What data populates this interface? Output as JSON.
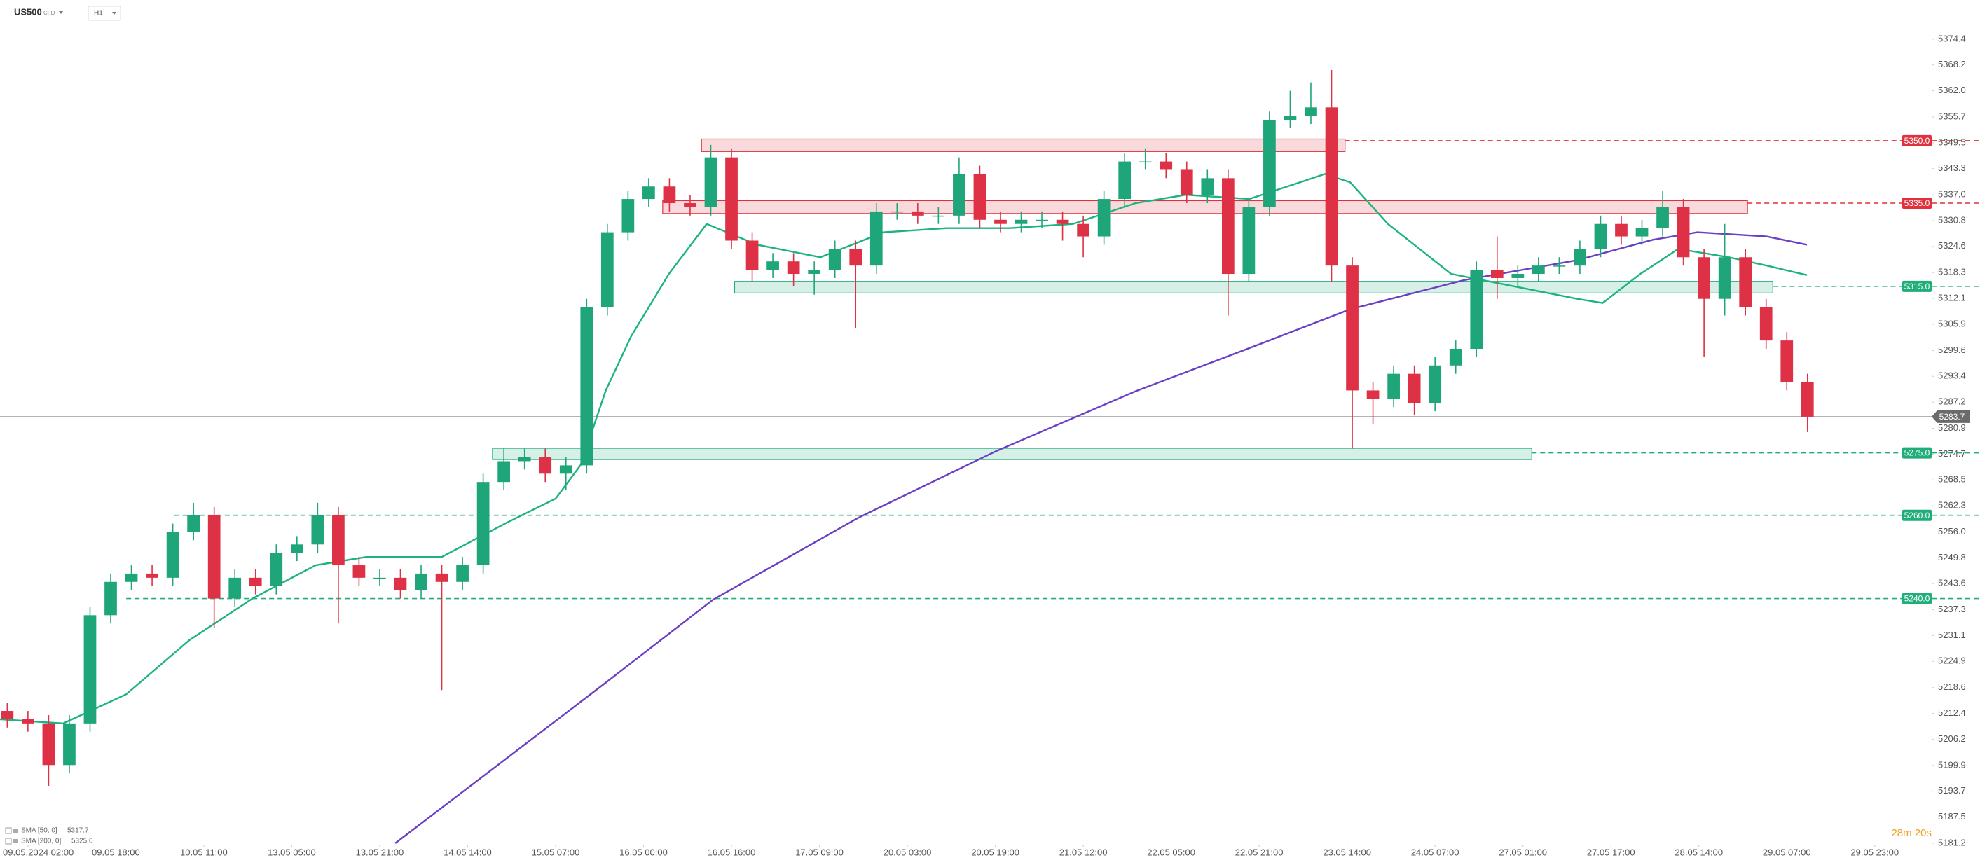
{
  "header": {
    "symbol": "US500",
    "instrument_type": "CFD",
    "timeframe": "H1"
  },
  "chart_data": {
    "type": "candlestick",
    "up_color": "#1fa57a",
    "down_color": "#de3146",
    "x": [
      -4,
      0,
      4,
      8,
      12,
      16,
      20,
      24,
      28,
      32,
      36,
      40,
      44,
      48,
      52,
      56,
      60,
      64,
      68,
      72,
      76,
      80,
      84,
      88,
      92,
      96,
      100,
      104,
      108,
      112,
      116,
      120,
      124,
      128,
      132,
      136,
      140,
      144,
      148,
      152,
      156,
      160,
      164,
      168,
      172,
      176,
      180,
      184,
      188,
      192,
      196,
      200,
      204,
      208,
      212,
      216,
      220,
      224,
      228,
      232,
      236,
      240,
      244,
      248,
      252,
      256,
      260,
      264,
      268,
      272,
      276,
      280,
      284,
      288,
      292,
      296,
      300,
      304,
      308,
      312,
      316,
      320,
      324,
      328,
      332,
      336,
      340,
      344
    ],
    "open": [
      5213,
      5211,
      5210,
      5200,
      5210,
      5236,
      5244,
      5246,
      5245,
      5256,
      5260,
      5240,
      5245,
      5243,
      5251,
      5253,
      5260,
      5248,
      5245,
      5245,
      5242,
      5246,
      5244,
      5248,
      5268,
      5273,
      5274,
      5270,
      5272,
      5310,
      5328,
      5336,
      5339,
      5335,
      5334,
      5346,
      5326,
      5319,
      5321,
      5318,
      5319,
      5324,
      5320,
      5333,
      5333,
      5332,
      5332,
      5342,
      5331,
      5330,
      5331,
      5331,
      5330,
      5327,
      5336,
      5345,
      5345,
      5343,
      5337,
      5341,
      5318,
      5334,
      5355,
      5356,
      5358,
      5320,
      5290,
      5288,
      5294,
      5287,
      5296,
      5300,
      5319,
      5317,
      5318,
      5320,
      5320,
      5324,
      5330,
      5327,
      5329,
      5334,
      5322,
      5312,
      5322,
      5310,
      5302,
      5292
    ],
    "high": [
      5215,
      5213,
      5212,
      5212,
      5238,
      5246,
      5248,
      5248,
      5258,
      5263,
      5262,
      5247,
      5247,
      5253,
      5255,
      5263,
      5262,
      5250,
      5247,
      5247,
      5248,
      5248,
      5250,
      5270,
      5276,
      5276,
      5276,
      5274,
      5312,
      5330,
      5338,
      5341,
      5341,
      5337,
      5349,
      5348,
      5328,
      5323,
      5323,
      5321,
      5326,
      5326,
      5335,
      5335,
      5335,
      5334,
      5346,
      5344,
      5333,
      5333,
      5333,
      5333,
      5332,
      5338,
      5347,
      5348,
      5347,
      5345,
      5343,
      5343,
      5336,
      5357,
      5362,
      5364,
      5367,
      5322,
      5292,
      5296,
      5296,
      5298,
      5302,
      5321,
      5327,
      5320,
      5322,
      5322,
      5326,
      5332,
      5332,
      5331,
      5338,
      5336,
      5324,
      5330,
      5324,
      5312,
      5304,
      5294
    ],
    "low": [
      5209,
      5208,
      5195,
      5198,
      5208,
      5234,
      5242,
      5243,
      5243,
      5254,
      5233,
      5238,
      5241,
      5241,
      5249,
      5251,
      5234,
      5243,
      5243,
      5240,
      5240,
      5218,
      5242,
      5246,
      5266,
      5271,
      5268,
      5266,
      5270,
      5308,
      5326,
      5334,
      5333,
      5332,
      5332,
      5324,
      5316,
      5317,
      5315,
      5313,
      5317,
      5305,
      5318,
      5331,
      5330,
      5330,
      5330,
      5329,
      5328,
      5328,
      5329,
      5326,
      5322,
      5325,
      5334,
      5343,
      5341,
      5335,
      5335,
      5308,
      5316,
      5332,
      5353,
      5354,
      5316,
      5276,
      5282,
      5286,
      5284,
      5285,
      5294,
      5298,
      5312,
      5315,
      5316,
      5318,
      5318,
      5322,
      5325,
      5325,
      5327,
      5320,
      5298,
      5308,
      5308,
      5300,
      5290,
      5280
    ],
    "close": [
      5211,
      5210,
      5200,
      5210,
      5236,
      5244,
      5246,
      5245,
      5256,
      5260,
      5240,
      5245,
      5243,
      5251,
      5253,
      5260,
      5248,
      5245,
      5245,
      5242,
      5246,
      5244,
      5248,
      5268,
      5273,
      5274,
      5270,
      5272,
      5310,
      5328,
      5336,
      5339,
      5335,
      5334,
      5346,
      5326,
      5319,
      5321,
      5318,
      5319,
      5324,
      5320,
      5333,
      5333,
      5332,
      5332,
      5342,
      5331,
      5330,
      5331,
      5331,
      5330,
      5327,
      5336,
      5345,
      5345,
      5343,
      5337,
      5341,
      5318,
      5334,
      5355,
      5356,
      5358,
      5320,
      5290,
      5288,
      5294,
      5287,
      5296,
      5300,
      5319,
      5317,
      5318,
      5320,
      5320,
      5324,
      5330,
      5327,
      5329,
      5334,
      5322,
      5312,
      5322,
      5310,
      5302,
      5292,
      5283.7
    ],
    "xlim": [
      -5.4,
      368
    ],
    "xticks": [
      {
        "value": 0,
        "label": "09.05.2024 02:00"
      },
      {
        "value": 17,
        "label": "09.05 18:00"
      },
      {
        "value": 34,
        "label": "10.05 11:00"
      },
      {
        "value": 51,
        "label": "13.05 05:00"
      },
      {
        "value": 68,
        "label": "13.05 21:00"
      },
      {
        "value": 85,
        "label": "14.05 14:00"
      },
      {
        "value": 102,
        "label": "15.05 07:00"
      },
      {
        "value": 119,
        "label": "16.05 00:00"
      },
      {
        "value": 136,
        "label": "16.05 16:00"
      },
      {
        "value": 153,
        "label": "17.05 09:00"
      },
      {
        "value": 170,
        "label": "20.05 03:00"
      },
      {
        "value": 187,
        "label": "20.05 19:00"
      },
      {
        "value": 204,
        "label": "21.05 12:00"
      },
      {
        "value": 221,
        "label": "22.05 05:00"
      },
      {
        "value": 238,
        "label": "22.05 21:00"
      },
      {
        "value": 255,
        "label": "23.05 14:00"
      },
      {
        "value": 272,
        "label": "24.05 07:00"
      },
      {
        "value": 289,
        "label": "27.05 01:00"
      },
      {
        "value": 306,
        "label": "27.05 17:00"
      },
      {
        "value": 323,
        "label": "28.05 14:00"
      },
      {
        "value": 340,
        "label": "29.05 07:00"
      },
      {
        "value": 357,
        "label": "29.05 23:00"
      }
    ],
    "ylim": [
      5181.2,
      5383.8
    ],
    "yticks": [
      5374.4,
      5368.2,
      {
        "value": 5362,
        "label": "5362.0"
      },
      5355.7,
      5349.5,
      5343.3,
      {
        "value": 5337,
        "label": "5337.0"
      },
      5330.8,
      5324.6,
      5318.3,
      5312.1,
      5305.9,
      5299.6,
      5293.4,
      5287.2,
      5280.9,
      5274.7,
      5268.5,
      5262.3,
      {
        "value": 5256,
        "label": "5256.0"
      },
      5249.8,
      5243.6,
      5237.3,
      5231.1,
      5224.9,
      5218.6,
      5212.4,
      5206.2,
      5199.9,
      5193.7,
      5187.5,
      5181.2
    ],
    "indicators": [
      {
        "name": "SMA [50, 0]",
        "value": 5317.7,
        "color": "#1db37f",
        "x": [
          -5.4,
          6.8,
          19,
          31.2,
          43.4,
          55.6,
          65.4,
          80,
          92.2,
          102,
          106.8,
          111.7,
          116.6,
          123.9,
          131.2,
          141,
          153.2,
          165.4,
          177.6,
          189.8,
          202,
          214.1,
          223.9,
          236.1,
          245.9,
          250.7,
          255.6,
          262.9,
          275.1,
          287.3,
          299.5,
          304.4,
          311.7,
          319,
          328.8,
          336.1,
          343.9
        ],
        "values": [
          5211,
          5210,
          5217,
          5230,
          5240,
          5248,
          5250,
          5250,
          5258,
          5264,
          5272,
          5290,
          5303,
          5318,
          5330,
          5325,
          5322,
          5328,
          5329,
          5329,
          5330,
          5335,
          5337,
          5336,
          5340,
          5342,
          5340,
          5330,
          5318,
          5315,
          5312,
          5311,
          5318,
          5324,
          5322,
          5320,
          5317.7
        ]
      },
      {
        "name": "SMA [200, 0]",
        "value": 5325,
        "value_label": "5325.0",
        "color": "#6a3fc4",
        "x": [
          71,
          92.2,
          111.7,
          132.4,
          160.5,
          187.3,
          214.1,
          238.5,
          255.6,
          277.6,
          299.5,
          314.1,
          322.7,
          336.1,
          343.9
        ],
        "values": [
          5181.2,
          5201.3,
          5219.8,
          5239.7,
          5259.4,
          5275.5,
          5289.8,
          5301.3,
          5309.5,
          5316.5,
          5321.3,
          5326.2,
          5328,
          5327,
          5325
        ]
      }
    ],
    "zones": [
      {
        "x": [
          130.2,
          254.6
        ],
        "y": [
          5347.4,
          5350.4
        ],
        "color": "#e0313c"
      },
      {
        "x": [
          122.7,
          332.4
        ],
        "y": [
          5332.5,
          5335.6
        ],
        "color": "#e0313c"
      },
      {
        "x": [
          136.6,
          337.3
        ],
        "y": [
          5313.4,
          5316.2
        ],
        "color": "#1fae7a"
      },
      {
        "x": [
          89.8,
          290.7
        ],
        "y": [
          5273.4,
          5276.1
        ],
        "color": "#1fae7a"
      }
    ],
    "levels": [
      {
        "value": 5350,
        "label": "5350.0",
        "color": "#e0313c",
        "from": 254.6
      },
      {
        "value": 5335,
        "label": "5335.0",
        "color": "#e0313c",
        "from": 332.4
      },
      {
        "value": 5315,
        "label": "5315.0",
        "color": "#1fae7a",
        "from": 337.3
      },
      {
        "value": 5275,
        "label": "5275.0",
        "color": "#1fae7a",
        "from": 290.7
      },
      {
        "value": 5260,
        "label": "5260.0",
        "color": "#1fae7a",
        "from": 28.3
      },
      {
        "value": 5240,
        "label": "5240.0",
        "color": "#1fae7a",
        "from": 19
      }
    ],
    "last_price": 5283.7,
    "countdown": "28m 20s"
  }
}
